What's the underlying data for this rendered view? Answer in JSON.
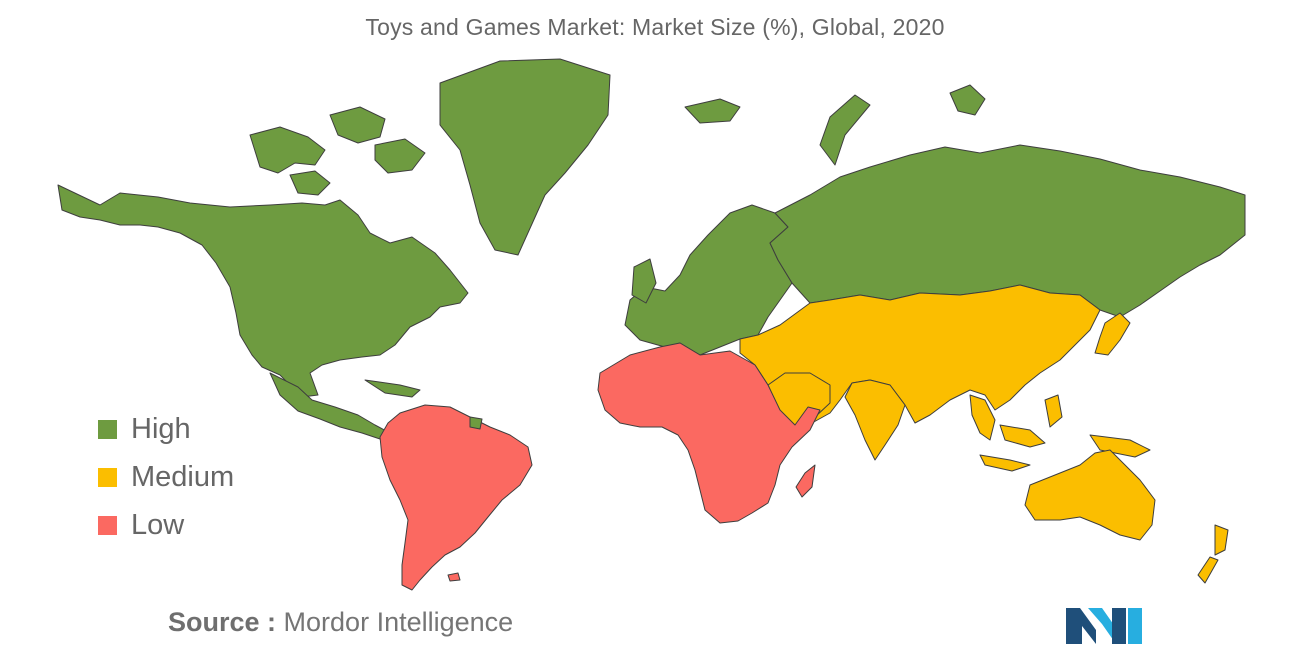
{
  "title": "Toys and Games Market: Market Size (%), Global, 2020",
  "legend": [
    {
      "label": "High",
      "color": "#6e9b40"
    },
    {
      "label": "Medium",
      "color": "#fbbe00"
    },
    {
      "label": "Low",
      "color": "#fb6961"
    }
  ],
  "source": {
    "prefix": "Source :",
    "name": "Mordor Intelligence"
  },
  "logo": {
    "icon": "mordor-intelligence-logo",
    "colors": [
      "#1f4f7a",
      "#27aee0"
    ]
  },
  "map": {
    "regions": [
      {
        "name": "North America",
        "category": "High"
      },
      {
        "name": "Greenland",
        "category": "High"
      },
      {
        "name": "Europe",
        "category": "High"
      },
      {
        "name": "Russia",
        "category": "High"
      },
      {
        "name": "Central America",
        "category": "High"
      },
      {
        "name": "Middle East",
        "category": "Medium"
      },
      {
        "name": "Asia",
        "category": "Medium"
      },
      {
        "name": "Japan",
        "category": "Medium"
      },
      {
        "name": "Southeast Asia",
        "category": "Medium"
      },
      {
        "name": "Australia",
        "category": "Medium"
      },
      {
        "name": "New Zealand",
        "category": "Medium"
      },
      {
        "name": "South America",
        "category": "Low"
      },
      {
        "name": "Africa",
        "category": "Low"
      },
      {
        "name": "Madagascar",
        "category": "Low"
      }
    ]
  }
}
